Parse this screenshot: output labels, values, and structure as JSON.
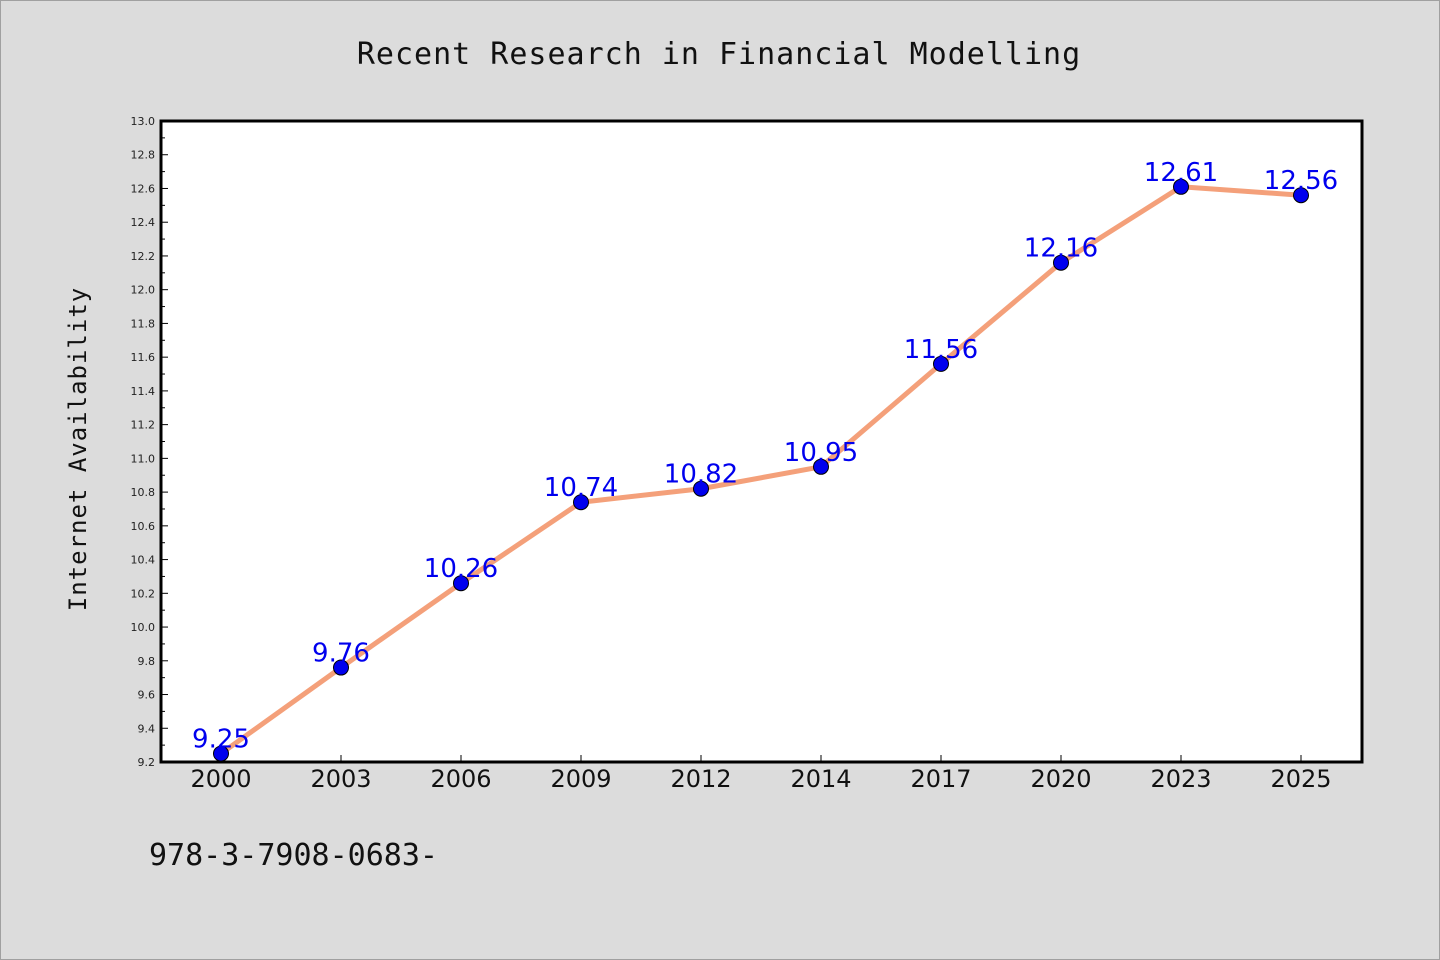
{
  "chart_data": {
    "type": "line",
    "title": "Recent Research in Financial Modelling",
    "xlabel": "",
    "ylabel": "Internet Availability",
    "categories": [
      "2000",
      "2003",
      "2006",
      "2009",
      "2012",
      "2014",
      "2017",
      "2020",
      "2023",
      "2025"
    ],
    "series": [
      {
        "values": [
          9.25,
          9.76,
          10.26,
          10.74,
          10.82,
          10.95,
          11.56,
          12.16,
          12.61,
          12.56
        ],
        "data_labels": [
          "9.25",
          "9.76",
          "10.26",
          "10.74",
          "10.82",
          "10.95",
          "11.56",
          "12.16",
          "12.61",
          "12.56"
        ],
        "line_color": "#f4a07a",
        "marker_color": "#0000ee"
      }
    ],
    "ylim": [
      9.2,
      13.0
    ],
    "yticks": [
      "9.2",
      "9.4",
      "9.6",
      "9.8",
      "10.0",
      "10.2",
      "10.4",
      "10.6",
      "10.8",
      "11.0",
      "11.2",
      "11.4",
      "11.6",
      "11.8",
      "12.0",
      "12.2",
      "12.4",
      "12.6",
      "12.8",
      "13.0"
    ],
    "grid": false,
    "legend": "none"
  },
  "footer": {
    "text": "978-3-7908-0683-"
  },
  "colors": {
    "background": "#dcdcdc",
    "plot_background": "#ffffff",
    "line": "#f4a07a",
    "marker": "#0000ee",
    "data_label": "#0000ee"
  }
}
